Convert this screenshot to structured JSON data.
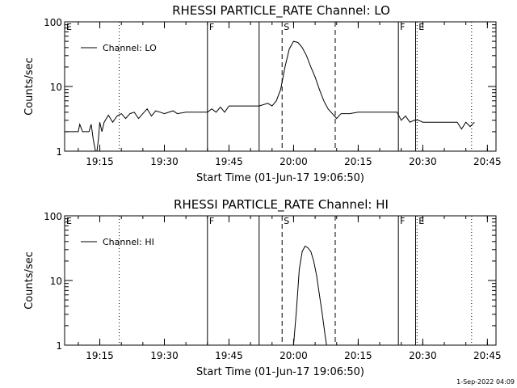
{
  "footer": {
    "date": "1-Sep-2022 04:09"
  },
  "chart_data": [
    {
      "type": "line",
      "title": "RHESSI PARTICLE_RATE Channel: LO",
      "xlabel": "Start Time (01-Jun-17 19:06:50)",
      "ylabel": "Counts/sec",
      "y_scale": "log",
      "ylim": [
        1,
        100
      ],
      "xlim": [
        "19:06:50",
        "20:47:00"
      ],
      "x_ticks": [
        "19:15",
        "19:30",
        "19:45",
        "20:00",
        "20:15",
        "20:30",
        "20:45"
      ],
      "y_ticks": [
        "1",
        "10",
        "100"
      ],
      "grid": false,
      "legend_position": "top-left",
      "series": [
        {
          "name": "Channel: LO",
          "color": "#000000",
          "x": [
            "19:07:00",
            "19:09:00",
            "19:10:00",
            "19:10:20",
            "19:11:00",
            "19:12:30",
            "19:13:00",
            "19:13:30",
            "19:14:00",
            "19:14:20",
            "19:14:40",
            "19:15:00",
            "19:15:30",
            "19:16:00",
            "19:17:00",
            "19:18:00",
            "19:19:00",
            "19:20:00",
            "19:21:00",
            "19:22:00",
            "19:23:00",
            "19:24:00",
            "19:25:00",
            "19:26:00",
            "19:27:00",
            "19:28:00",
            "19:29:00",
            "19:30:00",
            "19:32:00",
            "19:33:00",
            "19:35:00",
            "19:38:00",
            "19:40:00",
            "19:41:00",
            "19:42:00",
            "19:43:00",
            "19:44:00",
            "19:45:00",
            "19:48:00",
            "19:52:00",
            "19:54:00",
            "19:55:00",
            "19:56:00",
            "19:57:00",
            "19:58:00",
            "19:59:00",
            "20:00:00",
            "20:01:00",
            "20:02:00",
            "20:03:00",
            "20:04:00",
            "20:05:00",
            "20:06:00",
            "20:07:00",
            "20:08:00",
            "20:09:00",
            "20:10:00",
            "20:11:00",
            "20:12:00",
            "20:13:00",
            "20:15:00",
            "20:20:00",
            "20:24:00",
            "20:25:00",
            "20:26:00",
            "20:27:00",
            "20:28:00",
            "20:29:00",
            "20:30:00",
            "20:33:00",
            "20:36:00",
            "20:38:00",
            "20:39:00",
            "20:40:00",
            "20:41:00",
            "20:42:00"
          ],
          "values": [
            2.0,
            2.0,
            2.0,
            2.6,
            2.0,
            2.0,
            2.6,
            1.5,
            0.8,
            1.0,
            1.5,
            2.8,
            2.0,
            2.8,
            3.6,
            2.8,
            3.5,
            3.8,
            3.2,
            3.8,
            4.0,
            3.2,
            3.8,
            4.5,
            3.5,
            4.2,
            4.0,
            3.8,
            4.2,
            3.8,
            4.0,
            4.0,
            4.0,
            4.5,
            4.0,
            4.8,
            4.0,
            5.0,
            5.0,
            5.0,
            5.5,
            5.0,
            6.0,
            9.0,
            20.0,
            38.0,
            50.0,
            48.0,
            40.0,
            30.0,
            20.0,
            14.0,
            9.0,
            6.0,
            4.5,
            3.8,
            3.2,
            3.8,
            3.8,
            3.8,
            4.0,
            4.0,
            4.0,
            3.0,
            3.5,
            2.8,
            3.0,
            3.0,
            2.8,
            2.8,
            2.8,
            2.8,
            2.2,
            2.8,
            2.4,
            2.8
          ]
        }
      ],
      "markers": [
        {
          "label": "E",
          "time": "19:06:50",
          "style": "dotted"
        },
        {
          "label": "",
          "time": "19:19:30",
          "style": "dotted"
        },
        {
          "label": "F",
          "time": "19:40:00",
          "style": "solid"
        },
        {
          "label": "",
          "time": "19:52:00",
          "style": "solid"
        },
        {
          "label": "S",
          "time": "19:57:20",
          "style": "dashed"
        },
        {
          "label": "",
          "time": "20:09:40",
          "style": "dashed"
        },
        {
          "label": "F",
          "time": "20:24:20",
          "style": "solid"
        },
        {
          "label": "",
          "time": "20:28:20",
          "style": "solid"
        },
        {
          "label": "E",
          "time": "20:28:40",
          "style": "dotted"
        },
        {
          "label": "",
          "time": "20:41:20",
          "style": "dotted"
        }
      ]
    },
    {
      "type": "line",
      "title": "RHESSI PARTICLE_RATE Channel: HI",
      "xlabel": "Start Time (01-Jun-17 19:06:50)",
      "ylabel": "Counts/sec",
      "y_scale": "log",
      "ylim": [
        1,
        100
      ],
      "xlim": [
        "19:06:50",
        "20:47:00"
      ],
      "x_ticks": [
        "19:15",
        "19:30",
        "19:45",
        "20:00",
        "20:15",
        "20:30",
        "20:45"
      ],
      "y_ticks": [
        "1",
        "10",
        "100"
      ],
      "grid": false,
      "legend_position": "top-left",
      "series": [
        {
          "name": "Channel: HI",
          "color": "#000000",
          "x": [
            "20:00:00",
            "20:00:40",
            "20:01:20",
            "20:02:00",
            "20:02:40",
            "20:03:20",
            "20:04:00",
            "20:04:40",
            "20:05:20",
            "20:06:00",
            "20:06:40",
            "20:07:20",
            "20:07:40"
          ],
          "values": [
            1.0,
            3.5,
            15.0,
            28.0,
            34.0,
            32.0,
            28.0,
            20.0,
            12.0,
            6.0,
            3.0,
            1.4,
            1.0
          ]
        }
      ],
      "markers": [
        {
          "label": "E",
          "time": "19:06:50",
          "style": "dotted"
        },
        {
          "label": "",
          "time": "19:19:30",
          "style": "dotted"
        },
        {
          "label": "F",
          "time": "19:40:00",
          "style": "solid"
        },
        {
          "label": "",
          "time": "19:52:00",
          "style": "solid"
        },
        {
          "label": "S",
          "time": "19:57:20",
          "style": "dashed"
        },
        {
          "label": "",
          "time": "20:09:40",
          "style": "dashed"
        },
        {
          "label": "F",
          "time": "20:24:20",
          "style": "solid"
        },
        {
          "label": "",
          "time": "20:28:20",
          "style": "solid"
        },
        {
          "label": "E",
          "time": "20:28:40",
          "style": "dotted"
        },
        {
          "label": "",
          "time": "20:41:20",
          "style": "dotted"
        }
      ]
    }
  ]
}
